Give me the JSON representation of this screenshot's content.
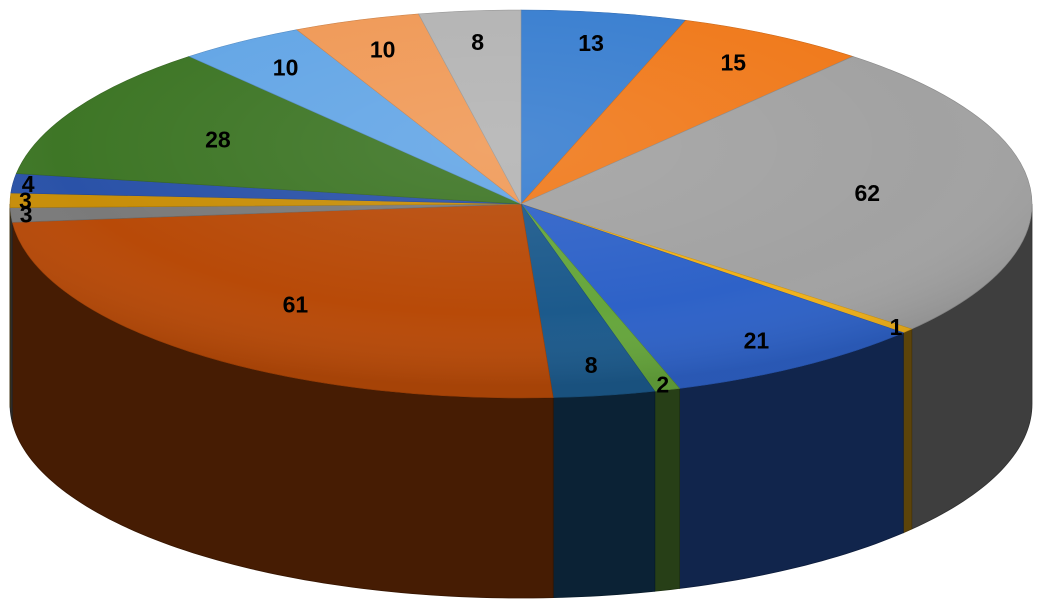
{
  "chart_data": {
    "type": "pie",
    "style": "3d",
    "start": "top",
    "direction": "clockwise",
    "values": [
      13,
      15,
      62,
      1,
      21,
      2,
      8,
      61,
      3,
      3,
      4,
      28,
      10,
      10,
      8
    ],
    "labels": [
      "13",
      "15",
      "62",
      "1",
      "21",
      "2",
      "8",
      "61",
      "3",
      "3",
      "4",
      "28",
      "10",
      "10",
      "8"
    ],
    "colors": [
      "#3a7fd0",
      "#f07a1c",
      "#a2a2a2",
      "#f2b21a",
      "#2e62c8",
      "#66a63c",
      "#1c5a8c",
      "#b84a08",
      "#7a7a7a",
      "#c88e08",
      "#2a52a8",
      "#3e7626",
      "#64a6e6",
      "#f09a58",
      "#b4b4b4"
    ]
  }
}
